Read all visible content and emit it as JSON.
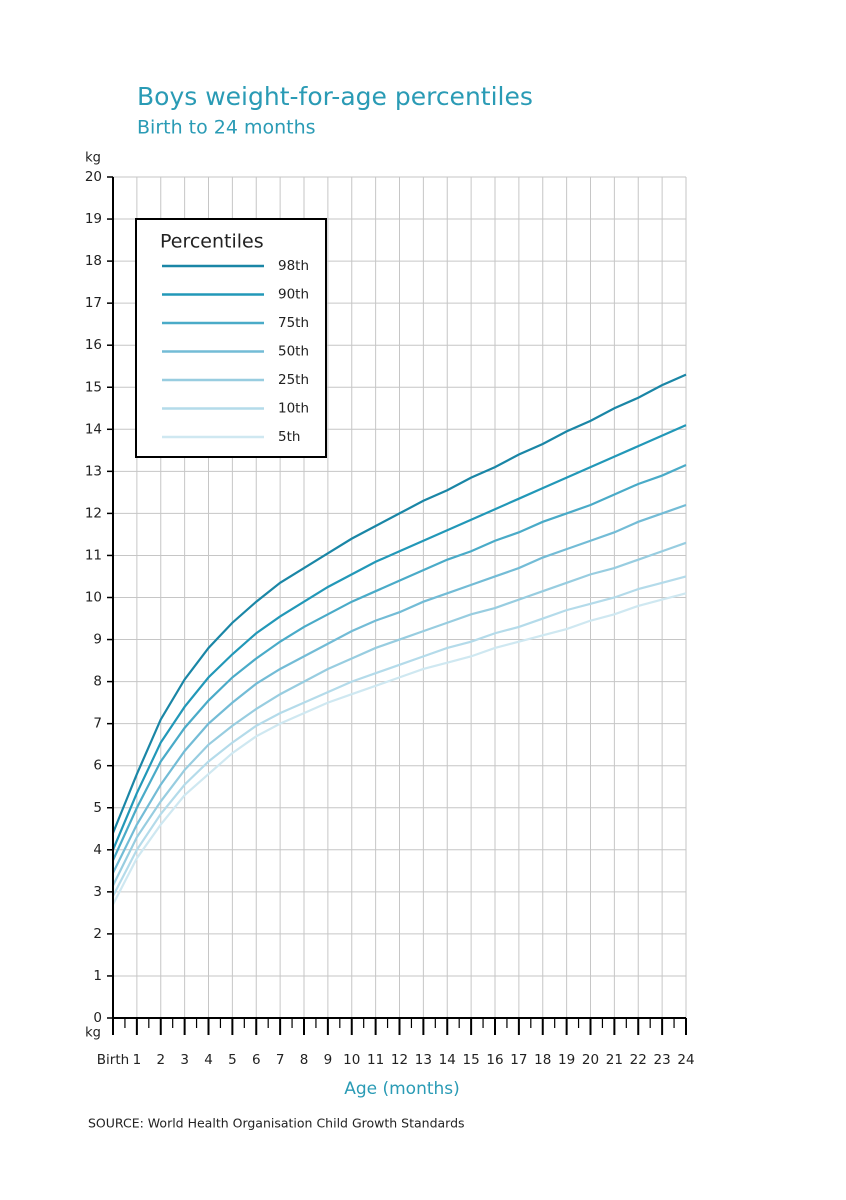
{
  "chart_data": {
    "type": "line",
    "title": "Boys weight-for-age percentiles",
    "subtitle": "Birth to 24 months",
    "y_label": "kg",
    "x_label": "Age (months)",
    "source": "SOURCE: World Health Organisation Child Growth Standards",
    "legend_title": "Percentiles",
    "legend": "upper left",
    "grid": true,
    "x": [
      0,
      1,
      2,
      3,
      4,
      5,
      6,
      7,
      8,
      9,
      10,
      11,
      12,
      13,
      14,
      15,
      16,
      17,
      18,
      19,
      20,
      21,
      22,
      23,
      24
    ],
    "xlim": [
      0,
      24
    ],
    "xticks": [
      {
        "value": 0,
        "label": "Birth"
      },
      1,
      2,
      3,
      4,
      5,
      6,
      7,
      8,
      9,
      10,
      11,
      12,
      13,
      14,
      15,
      16,
      17,
      18,
      19,
      20,
      21,
      22,
      23,
      24
    ],
    "ylim": [
      0,
      20
    ],
    "yticks": [
      0,
      1,
      2,
      3,
      4,
      5,
      6,
      7,
      8,
      9,
      10,
      11,
      12,
      13,
      14,
      15,
      16,
      17,
      18,
      19,
      20
    ],
    "series": [
      {
        "name": "98th",
        "color": "#1a86a6",
        "values": [
          4.4,
          5.8,
          7.1,
          8.05,
          8.8,
          9.4,
          9.9,
          10.35,
          10.7,
          11.05,
          11.4,
          11.7,
          12.0,
          12.3,
          12.55,
          12.85,
          13.1,
          13.4,
          13.65,
          13.95,
          14.2,
          14.5,
          14.75,
          15.05,
          15.3
        ]
      },
      {
        "name": "90th",
        "color": "#2298b8",
        "values": [
          4.0,
          5.35,
          6.55,
          7.4,
          8.1,
          8.65,
          9.15,
          9.55,
          9.9,
          10.25,
          10.55,
          10.85,
          11.1,
          11.35,
          11.6,
          11.85,
          12.1,
          12.35,
          12.6,
          12.85,
          13.1,
          13.35,
          13.6,
          13.85,
          14.1
        ]
      },
      {
        "name": "75th",
        "color": "#4aabc8",
        "values": [
          3.75,
          5.0,
          6.1,
          6.9,
          7.55,
          8.1,
          8.55,
          8.95,
          9.3,
          9.6,
          9.9,
          10.15,
          10.4,
          10.65,
          10.9,
          11.1,
          11.35,
          11.55,
          11.8,
          12.0,
          12.2,
          12.45,
          12.7,
          12.9,
          13.15
        ]
      },
      {
        "name": "50th",
        "color": "#73bcd6",
        "values": [
          3.45,
          4.6,
          5.55,
          6.35,
          7.0,
          7.5,
          7.95,
          8.3,
          8.6,
          8.9,
          9.2,
          9.45,
          9.65,
          9.9,
          10.1,
          10.3,
          10.5,
          10.7,
          10.95,
          11.15,
          11.35,
          11.55,
          11.8,
          12.0,
          12.2
        ]
      },
      {
        "name": "25th",
        "color": "#98cde0",
        "values": [
          3.15,
          4.3,
          5.15,
          5.9,
          6.5,
          6.95,
          7.35,
          7.7,
          8.0,
          8.3,
          8.55,
          8.8,
          9.0,
          9.2,
          9.4,
          9.6,
          9.75,
          9.95,
          10.15,
          10.35,
          10.55,
          10.7,
          10.9,
          11.1,
          11.3
        ]
      },
      {
        "name": "10th",
        "color": "#b4dbea",
        "values": [
          2.9,
          4.0,
          4.85,
          5.55,
          6.1,
          6.55,
          6.95,
          7.25,
          7.5,
          7.75,
          8.0,
          8.2,
          8.4,
          8.6,
          8.8,
          8.95,
          9.15,
          9.3,
          9.5,
          9.7,
          9.85,
          10.0,
          10.2,
          10.35,
          10.5
        ]
      },
      {
        "name": "5th",
        "color": "#cfe8f1",
        "values": [
          2.7,
          3.8,
          4.6,
          5.3,
          5.8,
          6.3,
          6.7,
          7.0,
          7.25,
          7.5,
          7.7,
          7.9,
          8.1,
          8.3,
          8.45,
          8.6,
          8.8,
          8.95,
          9.1,
          9.25,
          9.45,
          9.6,
          9.8,
          9.95,
          10.1
        ]
      }
    ]
  }
}
